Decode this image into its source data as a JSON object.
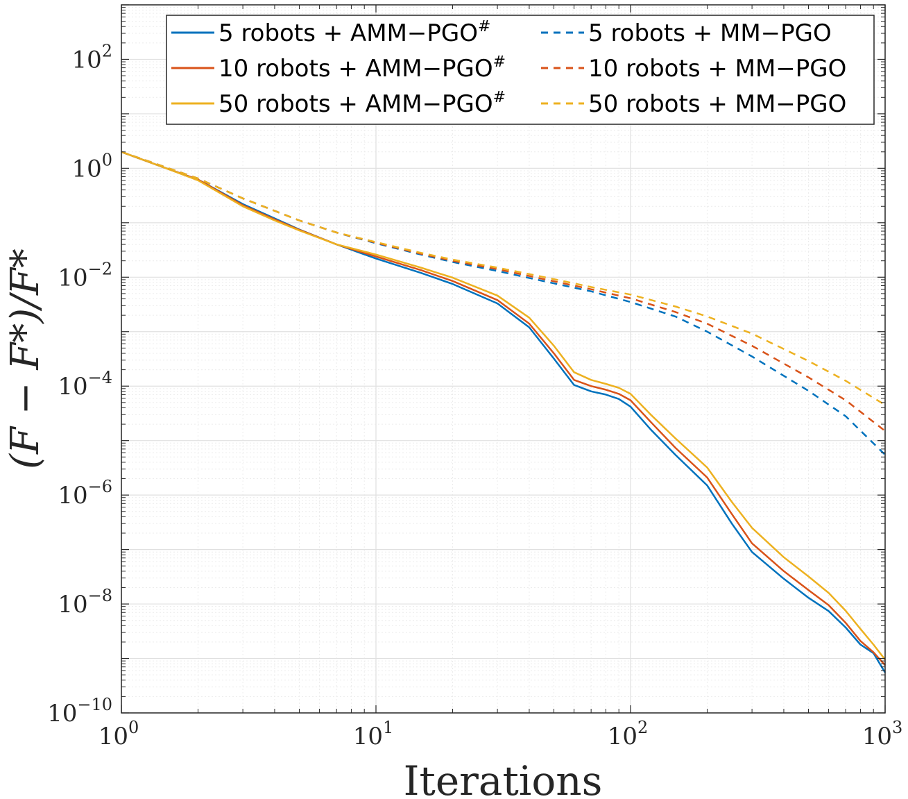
{
  "chart_data": {
    "type": "line",
    "title": "",
    "xlabel": "Iterations",
    "ylabel": "(F − F*)/F*",
    "xscale": "log",
    "yscale": "log",
    "xlim": [
      1,
      1000
    ],
    "ylim": [
      1e-10,
      1000
    ],
    "grid": true,
    "legend_position": "top-right",
    "x_ticks": [
      {
        "base": "10",
        "exp": "0",
        "value": 1
      },
      {
        "base": "10",
        "exp": "1",
        "value": 10
      },
      {
        "base": "10",
        "exp": "2",
        "value": 100
      },
      {
        "base": "10",
        "exp": "3",
        "value": 1000
      }
    ],
    "y_ticks": [
      {
        "base": "10",
        "exp": "2",
        "value": 100
      },
      {
        "base": "10",
        "exp": "0",
        "value": 1
      },
      {
        "base": "10",
        "exp": "−2",
        "value": 0.01
      },
      {
        "base": "10",
        "exp": "−4",
        "value": 0.0001
      },
      {
        "base": "10",
        "exp": "−6",
        "value": 1e-06
      },
      {
        "base": "10",
        "exp": "−8",
        "value": 1e-08
      },
      {
        "base": "10",
        "exp": "−10",
        "value": 1e-10
      }
    ],
    "series": [
      {
        "name": "5 robots + AMM−PGO#",
        "label_main": "5 robots + AMM−PGO",
        "label_sup": "#",
        "color": "#0072BD",
        "dash": false,
        "x": [
          1,
          1.5,
          2,
          3,
          4,
          5,
          7,
          10,
          15,
          20,
          30,
          40,
          50,
          60,
          70,
          80,
          90,
          100,
          120,
          150,
          200,
          250,
          300,
          400,
          500,
          600,
          700,
          800,
          900,
          1000
        ],
        "y": [
          2,
          1.0,
          0.62,
          0.22,
          0.12,
          0.075,
          0.04,
          0.022,
          0.012,
          0.0075,
          0.0033,
          0.0012,
          0.00032,
          0.000105,
          8e-05,
          7e-05,
          5.8e-05,
          4.2e-05,
          1.6e-05,
          5.5e-06,
          1.5e-06,
          3e-07,
          9e-08,
          2.9e-08,
          1.3e-08,
          7.4e-09,
          3.7e-09,
          1.8e-09,
          1.25e-09,
          5.5e-10
        ]
      },
      {
        "name": "10 robots + AMM−PGO#",
        "label_main": "10 robots + AMM−PGO",
        "label_sup": "#",
        "color": "#D95319",
        "dash": false,
        "x": [
          1,
          1.5,
          2,
          3,
          4,
          5,
          7,
          10,
          15,
          20,
          30,
          40,
          50,
          60,
          70,
          80,
          90,
          100,
          120,
          150,
          200,
          250,
          300,
          400,
          500,
          600,
          700,
          800,
          900,
          1000
        ],
        "y": [
          2,
          1.0,
          0.62,
          0.21,
          0.115,
          0.074,
          0.04,
          0.024,
          0.0135,
          0.0085,
          0.0038,
          0.0014,
          0.0004,
          0.00013,
          0.0001,
          8.6e-05,
          7.2e-05,
          5.5e-05,
          2.2e-05,
          7.4e-06,
          2.1e-06,
          4.5e-07,
          1.3e-07,
          4e-08,
          1.8e-08,
          9.5e-09,
          4.5e-09,
          2.1e-09,
          1.3e-09,
          7.5e-10
        ]
      },
      {
        "name": "50 robots + AMM−PGO#",
        "label_main": "50 robots + AMM−PGO",
        "label_sup": "#",
        "color": "#EDB120",
        "dash": false,
        "x": [
          1,
          1.5,
          2,
          3,
          4,
          5,
          7,
          10,
          15,
          20,
          30,
          40,
          50,
          60,
          70,
          80,
          90,
          100,
          120,
          150,
          200,
          250,
          300,
          400,
          500,
          600,
          700,
          800,
          900,
          1000
        ],
        "y": [
          2,
          1.0,
          0.6,
          0.2,
          0.11,
          0.072,
          0.04,
          0.026,
          0.015,
          0.0098,
          0.0046,
          0.0018,
          0.00055,
          0.00018,
          0.00013,
          0.00011,
          9.3e-05,
          7.2e-05,
          3e-05,
          1.1e-05,
          3.2e-06,
          7.5e-07,
          2.5e-07,
          7.2e-08,
          3.2e-08,
          1.6e-08,
          7.5e-09,
          3.5e-09,
          1.8e-09,
          9.5e-10
        ]
      },
      {
        "name": "5 robots + MM−PGO",
        "label_main": "5 robots + MM−PGO",
        "label_sup": "",
        "color": "#0072BD",
        "dash": true,
        "x": [
          1,
          2,
          3,
          5,
          7,
          10,
          15,
          20,
          30,
          50,
          70,
          100,
          150,
          200,
          300,
          500,
          700,
          1000
        ],
        "y": [
          2,
          0.65,
          0.28,
          0.11,
          0.066,
          0.042,
          0.026,
          0.019,
          0.013,
          0.0077,
          0.0055,
          0.0035,
          0.0019,
          0.001,
          0.00035,
          8.2e-05,
          2.8e-05,
          5.5e-06
        ]
      },
      {
        "name": "10 robots + MM−PGO",
        "label_main": "10 robots + MM−PGO",
        "label_sup": "",
        "color": "#D95319",
        "dash": true,
        "x": [
          1,
          2,
          3,
          5,
          7,
          10,
          15,
          20,
          30,
          50,
          70,
          100,
          150,
          200,
          300,
          500,
          700,
          1000
        ],
        "y": [
          2,
          0.65,
          0.28,
          0.11,
          0.066,
          0.043,
          0.027,
          0.02,
          0.014,
          0.0084,
          0.006,
          0.0041,
          0.0023,
          0.0014,
          0.00055,
          0.000145,
          5.5e-05,
          1.5e-05
        ]
      },
      {
        "name": "50 robots + MM−PGO",
        "label_main": "50 robots + MM−PGO",
        "label_sup": "",
        "color": "#EDB120",
        "dash": true,
        "x": [
          1,
          2,
          3,
          5,
          7,
          10,
          15,
          20,
          30,
          50,
          70,
          100,
          150,
          200,
          300,
          500,
          700,
          1000
        ],
        "y": [
          2,
          0.65,
          0.28,
          0.11,
          0.066,
          0.044,
          0.028,
          0.021,
          0.015,
          0.0092,
          0.0066,
          0.0048,
          0.0029,
          0.0019,
          0.00092,
          0.00029,
          0.000125,
          4.5e-05
        ]
      }
    ]
  }
}
